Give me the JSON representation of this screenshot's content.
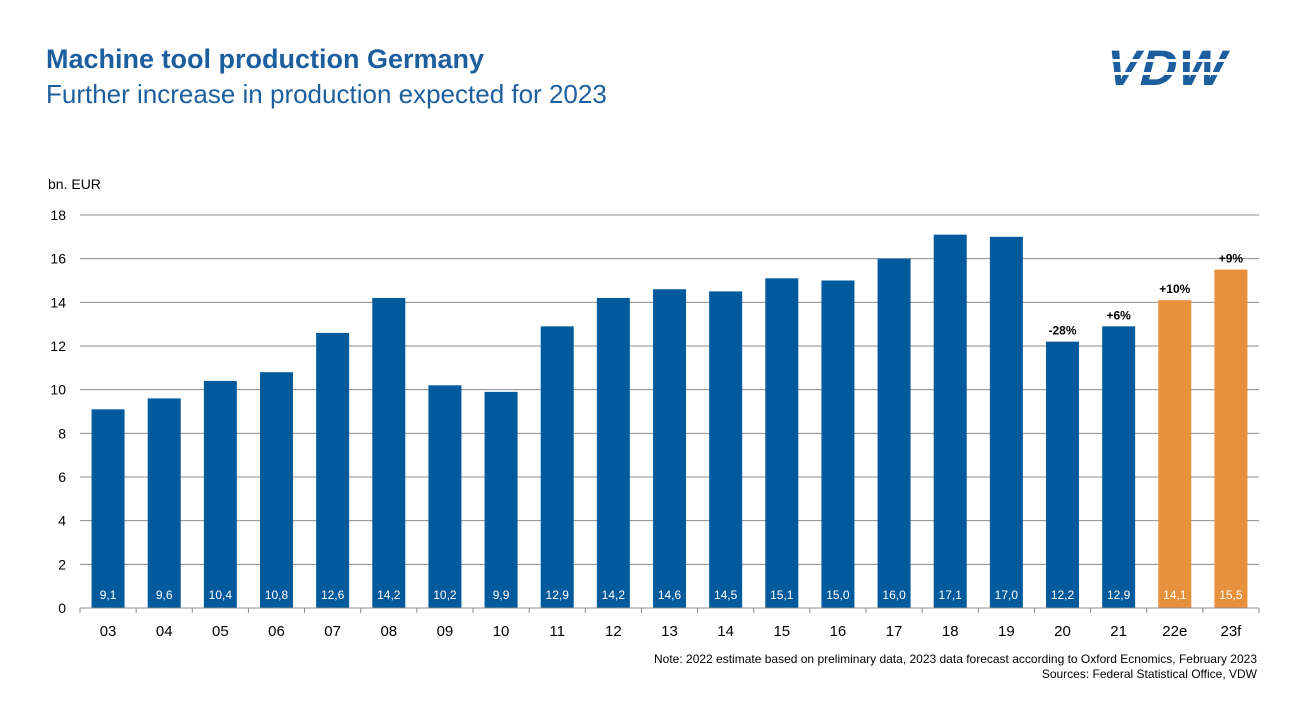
{
  "header": {
    "title": "Machine tool production Germany",
    "subtitle": "Further increase in production expected for 2023"
  },
  "logo": {
    "text": "VDW",
    "color": "#1d5f9e"
  },
  "colors": {
    "actual": "#005a9c",
    "forecast": "#e8913c",
    "grid": "#8c8c8c"
  },
  "chart_data": {
    "type": "bar",
    "ylabel": "bn. EUR",
    "ylim": [
      0,
      18
    ],
    "yticks": [
      0,
      2,
      4,
      6,
      8,
      10,
      12,
      14,
      16,
      18
    ],
    "grid": true,
    "categories": [
      "03",
      "04",
      "05",
      "06",
      "07",
      "08",
      "09",
      "10",
      "11",
      "12",
      "13",
      "14",
      "15",
      "16",
      "17",
      "18",
      "19",
      "20",
      "21",
      "22e",
      "23f"
    ],
    "values": [
      9.1,
      9.6,
      10.4,
      10.8,
      12.6,
      14.2,
      10.2,
      9.9,
      12.9,
      14.2,
      14.6,
      14.5,
      15.1,
      15.0,
      16.0,
      17.1,
      17.0,
      12.2,
      12.9,
      14.1,
      15.5
    ],
    "value_labels": [
      "9,1",
      "9,6",
      "10,4",
      "10,8",
      "12,6",
      "14,2",
      "10,2",
      "9,9",
      "12,9",
      "14,2",
      "14,6",
      "14,5",
      "15,1",
      "15,0",
      "16,0",
      "17,1",
      "17,0",
      "12,2",
      "12,9",
      "14,1",
      "15,5"
    ],
    "forecast": [
      false,
      false,
      false,
      false,
      false,
      false,
      false,
      false,
      false,
      false,
      false,
      false,
      false,
      false,
      false,
      false,
      false,
      false,
      false,
      true,
      true
    ],
    "annotations": [
      "",
      "",
      "",
      "",
      "",
      "",
      "",
      "",
      "",
      "",
      "",
      "",
      "",
      "",
      "",
      "",
      "",
      "-28%",
      "+6%",
      "+10%",
      "+9%"
    ]
  },
  "footer": {
    "note": "Note: 2022 estimate based on preliminary data, 2023 data forecast according to Oxford Ecnomics, February 2023",
    "sources": "Sources: Federal Statistical Office, VDW"
  }
}
